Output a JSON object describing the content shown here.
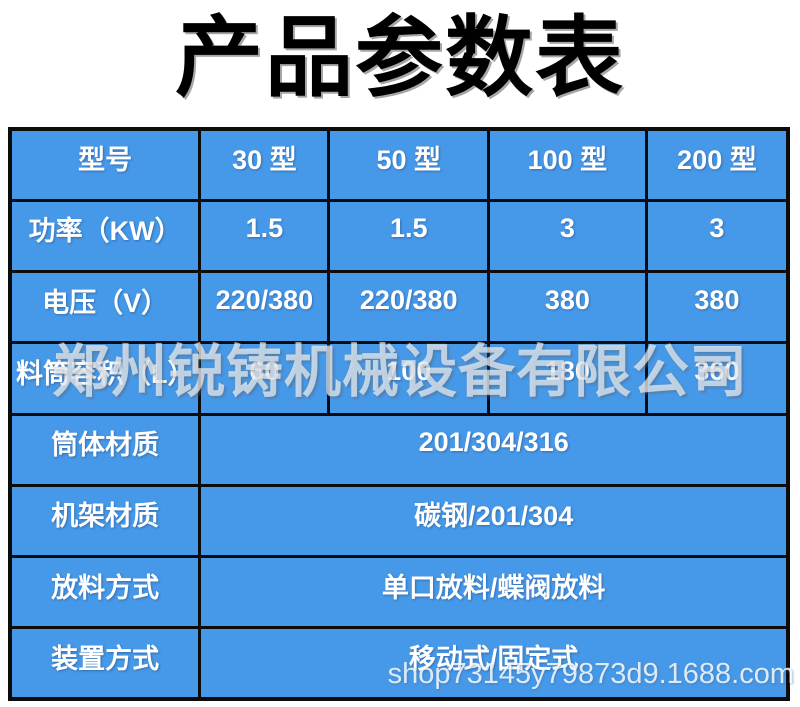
{
  "page": {
    "title": "产品参数表"
  },
  "table": {
    "header_row": {
      "label": "型号",
      "columns": [
        "30 型",
        "50 型",
        "100 型",
        "200 型"
      ]
    },
    "rows": [
      {
        "label": "功率（KW）",
        "values": [
          "1.5",
          "1.5",
          "3",
          "3"
        ]
      },
      {
        "label": "电压（V）",
        "values": [
          "220/380",
          "220/380",
          "380",
          "380"
        ]
      },
      {
        "label": "料筒容积（L）",
        "values": [
          "60",
          "100",
          "180",
          "360"
        ]
      },
      {
        "label": "筒体材质",
        "value": "201/304/316"
      },
      {
        "label": "机架材质",
        "value": "碳钢/201/304"
      },
      {
        "label": "放料方式",
        "value": "单口放料/蝶阀放料"
      },
      {
        "label": "装置方式",
        "value": "移动式/固定式"
      }
    ]
  },
  "watermarks": {
    "company": "郑州锐铸机械设备有限公司",
    "shop": "shop73145y79873d9.1688.com"
  },
  "colors": {
    "cell_background": "#4699e8",
    "cell_text": "#ffffff",
    "table_border": "#0c0c0c",
    "title_text": "#000000",
    "page_background": "#ffffff"
  }
}
